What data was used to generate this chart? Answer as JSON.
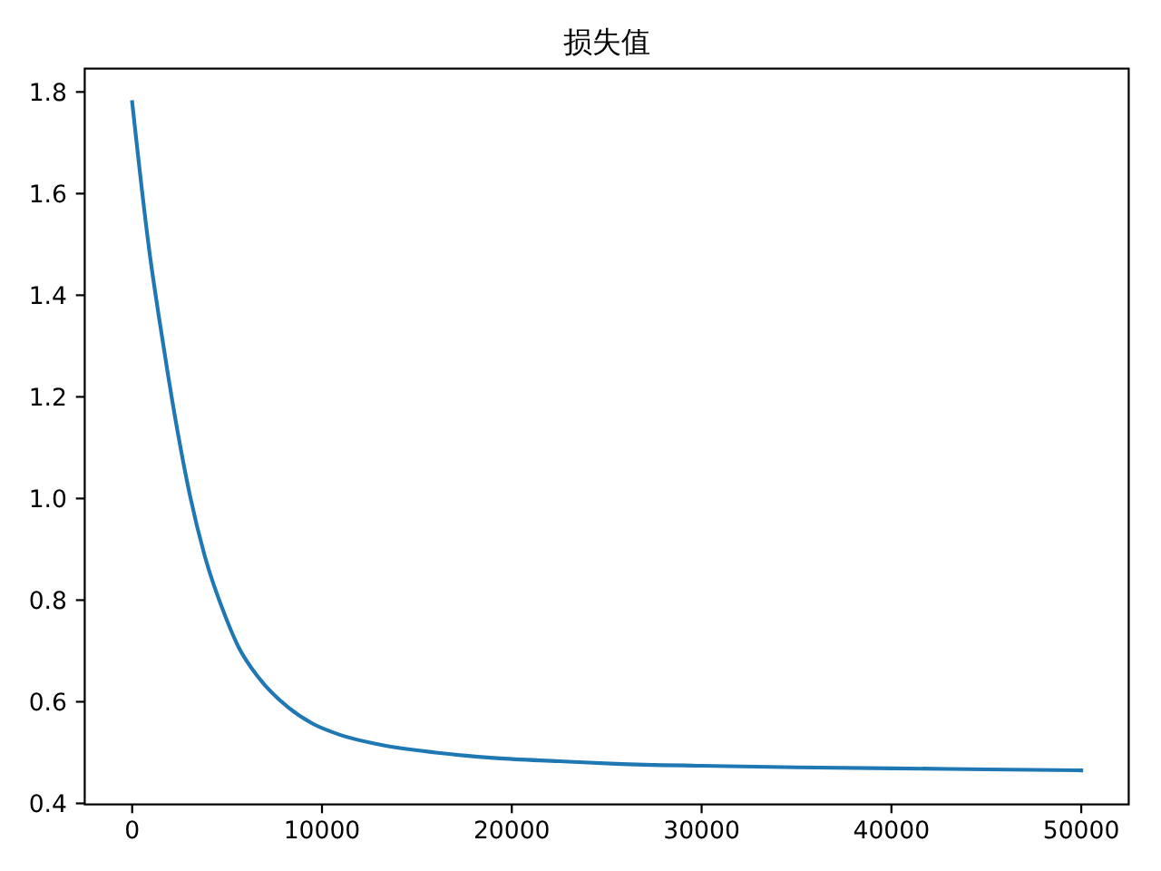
{
  "chart_data": {
    "type": "line",
    "title": "损失值",
    "x": [
      0,
      930,
      1390,
      1890,
      2430,
      3050,
      3830,
      4920,
      5600,
      6650,
      8250,
      9500,
      10940,
      13000,
      16000,
      19200,
      22500,
      25500,
      30000,
      35000,
      40000,
      45000,
      50000
    ],
    "series": [
      {
        "color": "#1f77b4",
        "values": [
          1.78,
          1.48,
          1.362,
          1.243,
          1.124,
          1.005,
          0.886,
          0.767,
          0.708,
          0.648,
          0.588,
          0.557,
          0.535,
          0.516,
          0.5,
          0.489,
          0.483,
          0.478,
          0.474,
          0.471,
          0.469,
          0.467,
          0.465
        ]
      }
    ],
    "xlim": [
      -2500,
      52500
    ],
    "xticks": [
      0,
      10000,
      20000,
      30000,
      40000,
      50000
    ],
    "ylim": [
      0.398,
      1.846
    ],
    "yticks": [
      {
        "value": 0.4,
        "label": "0.4"
      },
      {
        "value": 0.6,
        "label": "0.6"
      },
      {
        "value": 0.8,
        "label": "0.8"
      },
      {
        "value": 1.0,
        "label": "1.0"
      },
      {
        "value": 1.2,
        "label": "1.2"
      },
      {
        "value": 1.4,
        "label": "1.4"
      },
      {
        "value": 1.6,
        "label": "1.6"
      },
      {
        "value": 1.8,
        "label": "1.8"
      }
    ]
  }
}
